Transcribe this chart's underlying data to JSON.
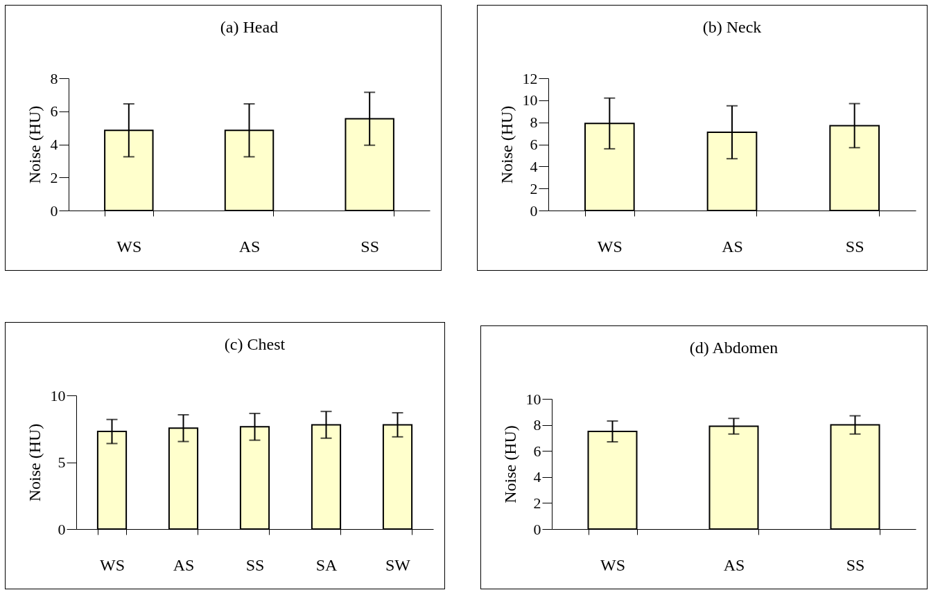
{
  "chart_data": [
    {
      "type": "bar",
      "title": "(a) Head",
      "ylabel": "Noise (HU)",
      "categories": [
        "WS",
        "AS",
        "SS"
      ],
      "values": [
        4.85,
        4.85,
        5.55
      ],
      "errors": [
        1.6,
        1.6,
        1.6
      ],
      "color": "#ffffcc",
      "ylim": [
        0,
        8
      ],
      "yticks": [
        0,
        2,
        4,
        6,
        8
      ]
    },
    {
      "type": "bar",
      "title": "(b) Neck",
      "ylabel": "Noise (HU)",
      "categories": [
        "WS",
        "AS",
        "SS"
      ],
      "values": [
        7.9,
        7.1,
        7.7
      ],
      "errors": [
        2.3,
        2.4,
        2.0
      ],
      "color": "#ffffcc",
      "ylim": [
        0,
        12
      ],
      "yticks": [
        0,
        2,
        4,
        6,
        8,
        10,
        12
      ]
    },
    {
      "type": "bar",
      "title": "(c) Chest",
      "ylabel": "Noise (HU)",
      "categories": [
        "WS",
        "AS",
        "SS",
        "SA",
        "SW"
      ],
      "values": [
        7.3,
        7.55,
        7.65,
        7.8,
        7.8
      ],
      "errors": [
        0.9,
        1.0,
        1.0,
        1.0,
        0.9
      ],
      "color": "#ffffcc",
      "ylim": [
        0,
        10
      ],
      "yticks": [
        0,
        5,
        10
      ]
    },
    {
      "type": "bar",
      "title": "(d) Abdomen",
      "ylabel": "Noise (HU)",
      "categories": [
        "WS",
        "AS",
        "SS"
      ],
      "values": [
        7.5,
        7.9,
        8.0
      ],
      "errors": [
        0.8,
        0.6,
        0.7
      ],
      "color": "#ffffcc",
      "ylim": [
        0,
        10
      ],
      "yticks": [
        0,
        2,
        4,
        6,
        8,
        10
      ]
    }
  ]
}
